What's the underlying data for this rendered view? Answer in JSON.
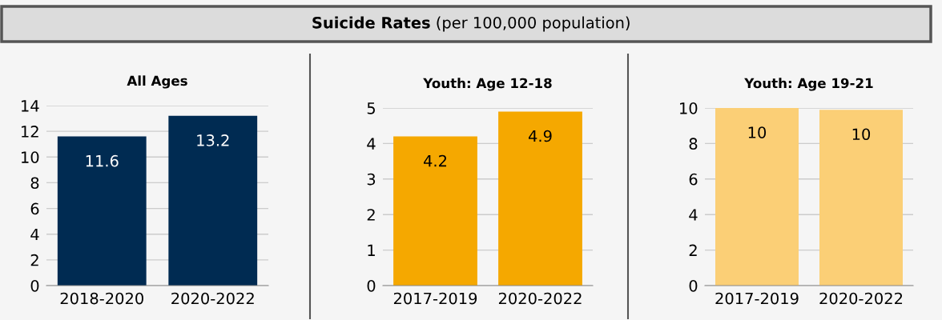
{
  "chart_data": [
    {
      "type": "other",
      "title": "Suicide Rates",
      "subtitle": "(per 100,000 population)"
    },
    {
      "type": "bar",
      "title": "All Ages",
      "categories": [
        "2018-2020",
        "2020-2022"
      ],
      "values": [
        11.6,
        13.2
      ],
      "color": "#002b52",
      "ylim": [
        0,
        14
      ],
      "yticks": [
        0,
        2,
        4,
        6,
        8,
        10,
        12,
        14
      ],
      "grid": "y",
      "data_labels": true
    },
    {
      "type": "bar",
      "title": "Youth: Age 12-18",
      "categories": [
        "2017-2019",
        "2020-2022"
      ],
      "values": [
        4.2,
        4.9
      ],
      "color": "#f5a800",
      "ylim": [
        0,
        5
      ],
      "yticks": [
        0,
        1,
        2,
        3,
        4,
        5
      ],
      "grid": "y",
      "data_labels": true
    },
    {
      "type": "bar",
      "title": "Youth: Age 19-21",
      "categories": [
        "2017-2019",
        "2020-2022"
      ],
      "values": [
        10,
        9.9
      ],
      "value_labels": [
        "10",
        "10"
      ],
      "color": "#fbcf76",
      "ylim": [
        0,
        10
      ],
      "yticks": [
        0,
        2,
        4,
        6,
        8,
        10
      ],
      "grid": "y"
    }
  ]
}
